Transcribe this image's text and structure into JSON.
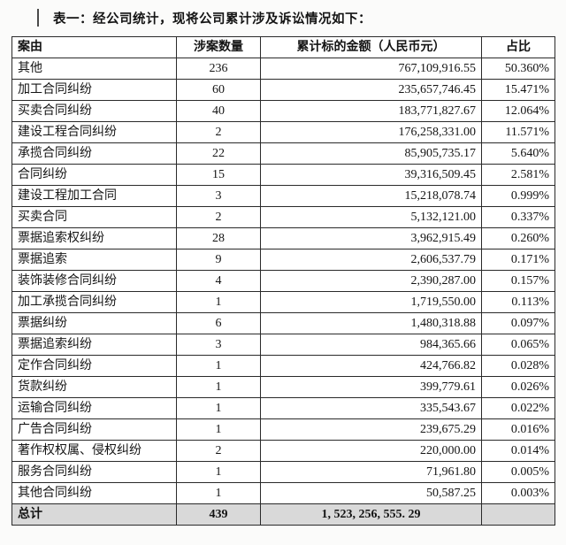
{
  "page": {
    "title": "表一：经公司统计，现将公司累计涉及诉讼情况如下："
  },
  "colors": {
    "border": "#2a2a2a",
    "total_row_bg": "#d9d9d9",
    "page_bg": "#fbfbfa"
  },
  "table": {
    "headers": [
      "案由",
      "涉案数量",
      "累计标的金额（人民币元）",
      "占比"
    ],
    "rows": [
      [
        "其他",
        "236",
        "767,109,916.55",
        "50.360%"
      ],
      [
        "加工合同纠纷",
        "60",
        "235,657,746.45",
        "15.471%"
      ],
      [
        "买卖合同纠纷",
        "40",
        "183,771,827.67",
        "12.064%"
      ],
      [
        "建设工程合同纠纷",
        "2",
        "176,258,331.00",
        "11.571%"
      ],
      [
        "承揽合同纠纷",
        "22",
        "85,905,735.17",
        "5.640%"
      ],
      [
        "合同纠纷",
        "15",
        "39,316,509.45",
        "2.581%"
      ],
      [
        "建设工程加工合同",
        "3",
        "15,218,078.74",
        "0.999%"
      ],
      [
        "买卖合同",
        "2",
        "5,132,121.00",
        "0.337%"
      ],
      [
        "票据追索权纠纷",
        "28",
        "3,962,915.49",
        "0.260%"
      ],
      [
        "票据追索",
        "9",
        "2,606,537.79",
        "0.171%"
      ],
      [
        "装饰装修合同纠纷",
        "4",
        "2,390,287.00",
        "0.157%"
      ],
      [
        "加工承揽合同纠纷",
        "1",
        "1,719,550.00",
        "0.113%"
      ],
      [
        "票据纠纷",
        "6",
        "1,480,318.88",
        "0.097%"
      ],
      [
        "票据追索纠纷",
        "3",
        "984,365.66",
        "0.065%"
      ],
      [
        "定作合同纠纷",
        "1",
        "424,766.82",
        "0.028%"
      ],
      [
        "货款纠纷",
        "1",
        "399,779.61",
        "0.026%"
      ],
      [
        "运输合同纠纷",
        "1",
        "335,543.67",
        "0.022%"
      ],
      [
        "广告合同纠纷",
        "1",
        "239,675.29",
        "0.016%"
      ],
      [
        "著作权权属、侵权纠纷",
        "2",
        "220,000.00",
        "0.014%"
      ],
      [
        "服务合同纠纷",
        "1",
        "71,961.80",
        "0.005%"
      ],
      [
        "其他合同纠纷",
        "1",
        "50,587.25",
        "0.003%"
      ]
    ],
    "total_row": [
      "总计",
      "439",
      "1, 523, 256, 555. 29",
      ""
    ]
  }
}
